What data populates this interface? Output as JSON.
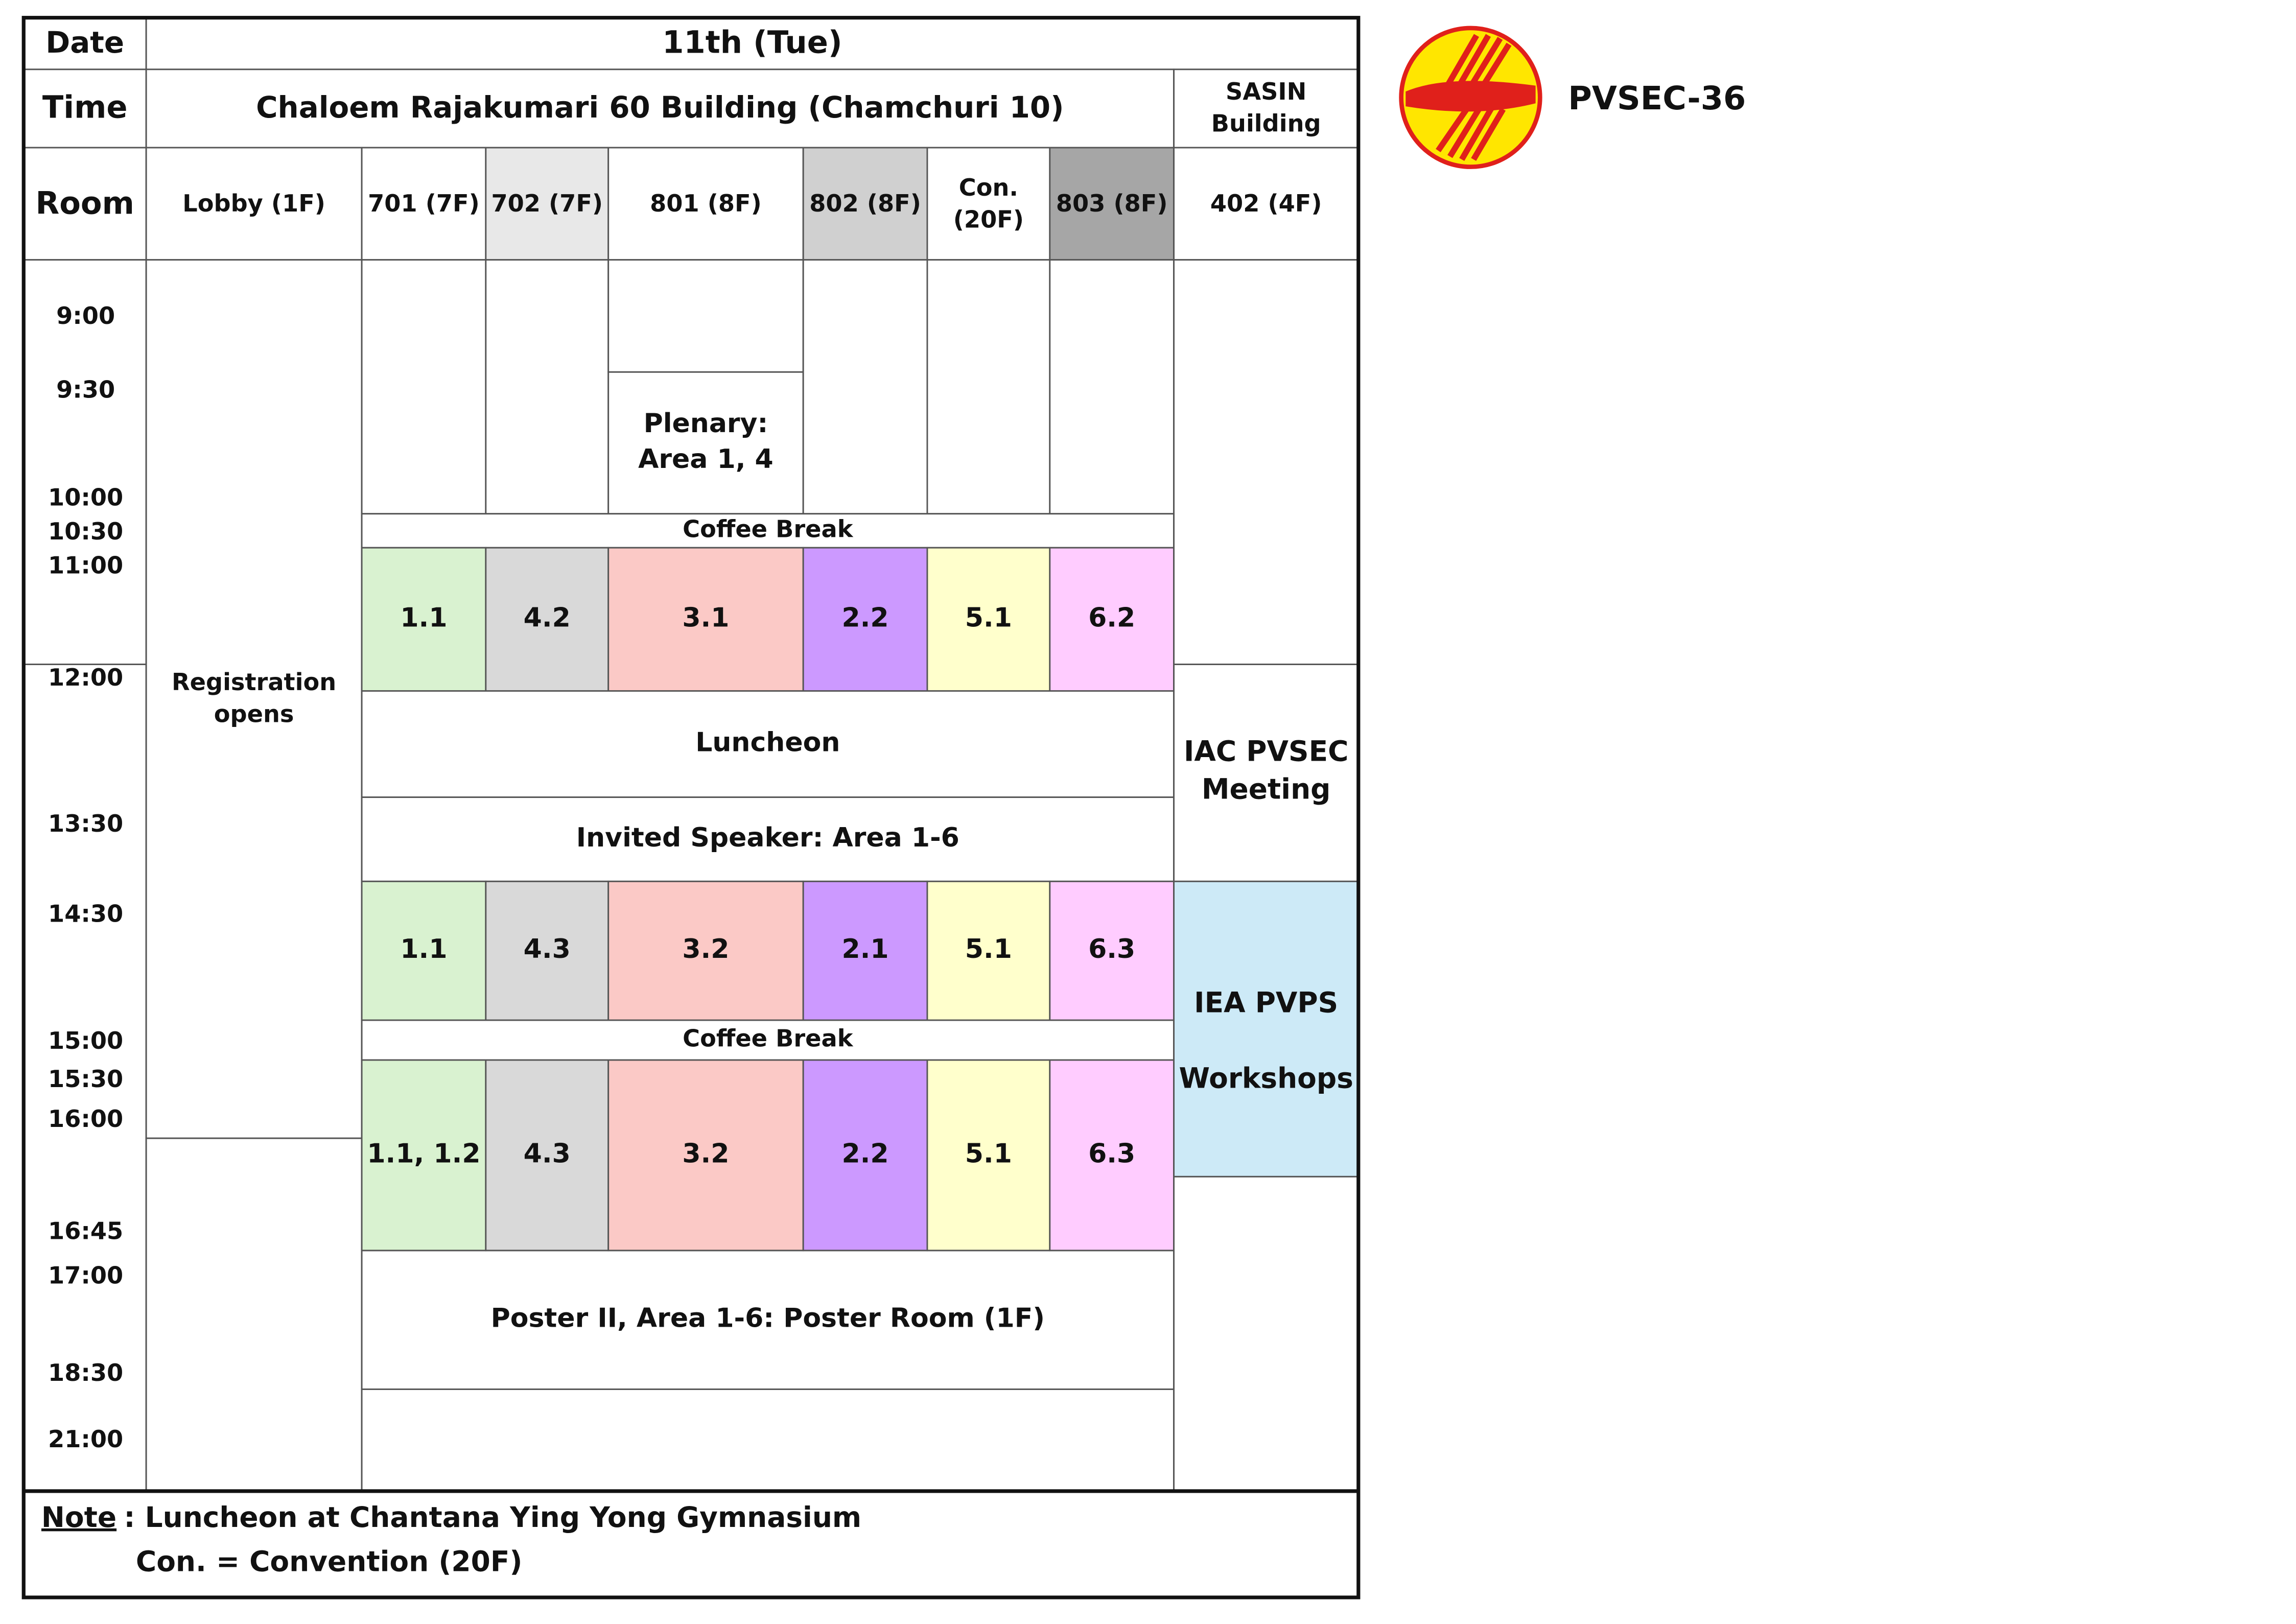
{
  "header": {
    "date_label": "Date",
    "date": "11th (Tue)",
    "time_label": "Time",
    "building": "Chaloem Rajakumari 60 Building (Chamchuri 10)",
    "building2": [
      "SASIN",
      "Building"
    ],
    "room_label": "Room"
  },
  "rooms": [
    "Lobby (1F)",
    "701 (7F)",
    "702 (7F)",
    "801 (8F)",
    "802 (8F)",
    [
      "Con.",
      "(20F)"
    ],
    "803 (8F)",
    "402 (4F)"
  ],
  "times": [
    "9:00",
    "9:30",
    "10:00",
    "10:30",
    "11:00",
    "12:00",
    "13:30",
    "14:30",
    "15:00",
    "15:30",
    "16:00",
    "16:45",
    "17:00",
    "18:30",
    "21:00"
  ],
  "blocks": {
    "registration": [
      "Registration",
      "opens"
    ],
    "plenary": [
      "Plenary:",
      "Area 1, 4"
    ],
    "coffee_1": "Coffee Break",
    "luncheon": "Luncheon",
    "invited": "Invited Speaker: Area 1-6",
    "coffee_2": "Coffee Break",
    "poster": "Poster II, Area 1-6: Poster Room (1F)",
    "iac": [
      "IAC PVSEC",
      "Meeting"
    ],
    "iea": [
      "IEA PVPS",
      "",
      "Workshops"
    ]
  },
  "sessions": [
    [
      "1.1",
      "4.2",
      "3.1",
      "2.2",
      "5.1",
      "6.2"
    ],
    [
      "1.1",
      "4.3",
      "3.2",
      "2.1",
      "5.1",
      "6.3"
    ],
    [
      "1.1, 1.2",
      "4.3",
      "3.2",
      "2.2",
      "5.1",
      "6.3"
    ]
  ],
  "note": {
    "label": "Note",
    "lines": [
      ": Luncheon at Chantana Ying Yong Gymnasium",
      "Con. = Convention (20F)"
    ]
  },
  "logo_text": "PVSEC-36"
}
